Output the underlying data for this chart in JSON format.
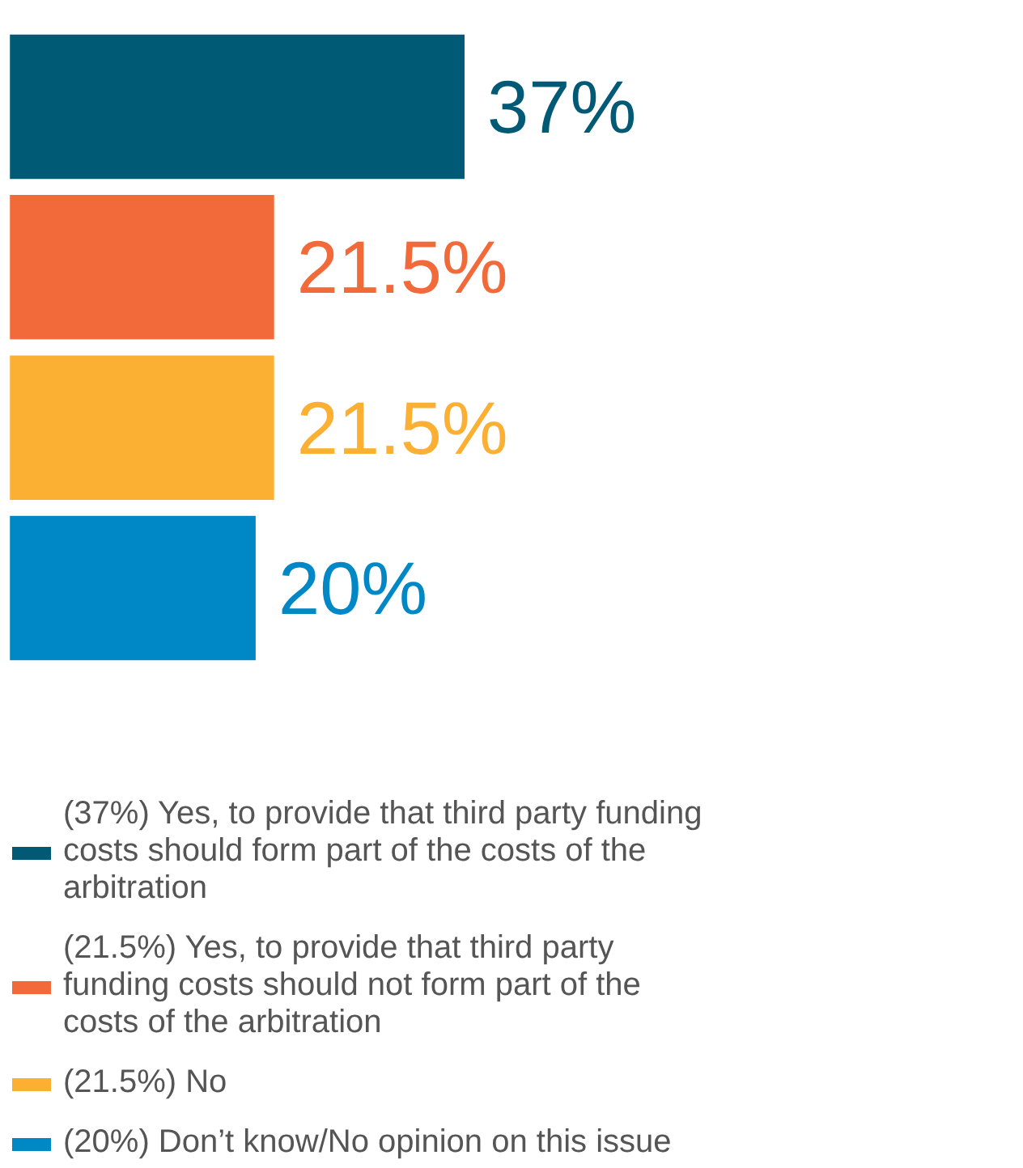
{
  "chart_data": {
    "type": "bar",
    "orientation": "horizontal",
    "legend": "bottom",
    "tick_labels": false,
    "grid": false,
    "categories": [
      null
    ],
    "series": [
      {
        "name": "(37%) Yes, to provide that third party funding costs should form part of the costs of the arbitration",
        "color": "#005a75",
        "values": [
          37
        ],
        "value_labels": [
          "37%"
        ]
      },
      {
        "name": "(21.5%) Yes, to provide that third party funding costs should not form part of the costs of the arbitration",
        "color": "#f26a3a",
        "values": [
          21.5
        ],
        "value_labels": [
          "21.5%"
        ]
      },
      {
        "name": "(21.5%) No",
        "color": "#fbb034",
        "values": [
          21.5
        ],
        "value_labels": [
          "21.5%"
        ]
      },
      {
        "name": "(20%) Don’t know/No opinion on this issue",
        "color": "#0088c6",
        "values": [
          20
        ],
        "value_labels": [
          "20%"
        ]
      }
    ]
  }
}
